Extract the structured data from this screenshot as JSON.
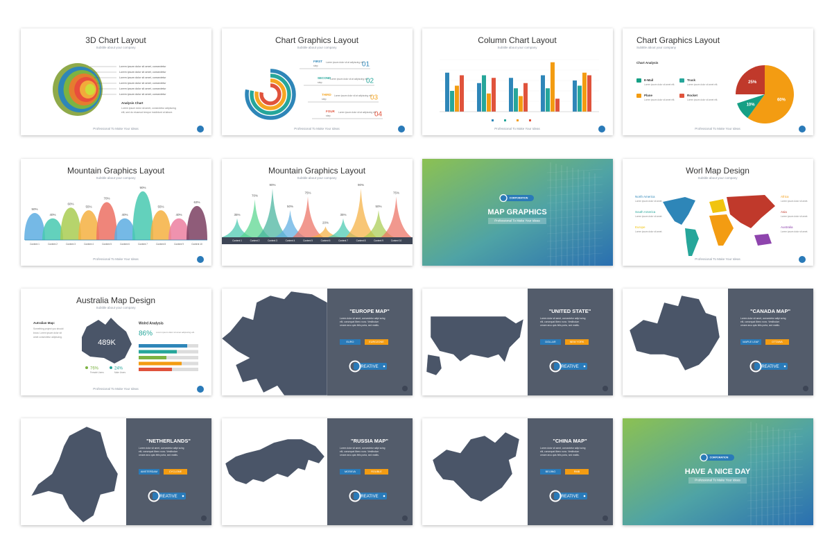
{
  "slides": [
    {
      "type": "chart3d",
      "title": "3D Chart Layout",
      "subtitle": "Subtitle about your company",
      "notes": [
        "Lorem ipsum dolor sit amet, consectetur",
        "Lorem ipsum dolor sit amet, consectetur",
        "Lorem ipsum dolor sit amet, consectetur",
        "Lorem ipsum dolor sit amet, consectetur",
        "Lorem ipsum dolor sit amet, consectetur",
        "Lorem ipsum dolor sit amet, consectetur"
      ],
      "caption": "Analysis Chart",
      "body": [
        "Lorem ipsum dolor sit amet, consectetur adipiscing",
        "elit, sed do eiusmod tempor incididunt ut labore."
      ],
      "footer": "Professional To Make Your Ideas"
    },
    {
      "type": "steps",
      "title": "Chart Graphics Layout",
      "subtitle": "Subtitle about your company",
      "steps": [
        {
          "label": "FIRST",
          "sub": "step",
          "num": "01",
          "text": "Lorem ipsum dolor sit at adipiscing elit.",
          "color": "#2e86b8"
        },
        {
          "label": "SECOND",
          "sub": "step",
          "num": "02",
          "text": "Lorem ipsum dolor sit at adipiscing elit.",
          "color": "#26a69a"
        },
        {
          "label": "THIRD",
          "sub": "step",
          "num": "03",
          "text": "Lorem ipsum dolor sit at adipiscing elit.",
          "color": "#f5a623"
        },
        {
          "label": "FOUR",
          "sub": "step",
          "num": "04",
          "text": "Lorem ipsum dolor sit at adipiscing elit.",
          "color": "#e0533c"
        }
      ],
      "footer": "Professional To Make Your Ideas"
    },
    {
      "type": "columns",
      "title": "Column Chart Layout",
      "subtitle": "Subtitle about your company",
      "ylim": [
        0,
        100
      ],
      "series": [
        {
          "color": "#2e86b8",
          "values": [
            75,
            55,
            65,
            70,
            60
          ]
        },
        {
          "color": "#26a69a",
          "values": [
            40,
            70,
            45,
            45,
            50
          ]
        },
        {
          "color": "#f39c12",
          "values": [
            50,
            35,
            30,
            95,
            75
          ]
        },
        {
          "color": "#e0533c",
          "values": [
            70,
            65,
            55,
            25,
            70
          ]
        }
      ],
      "footer": "Professional To Make Your Ideas"
    },
    {
      "type": "pie",
      "title": "Chart Graphics Layout",
      "subtitle": "Subtitle about your company",
      "heading": "Chart Analysis",
      "items": [
        "E-Mail",
        "Truck",
        "Plane",
        "Rocket"
      ],
      "item_colors": [
        "#16a085",
        "#26a69a",
        "#f39c12",
        "#e0533c"
      ],
      "desc": "Lorem ipsum dolor sit amet elit.",
      "values": [
        25,
        60,
        10
      ],
      "value_labels": [
        "25%",
        "60%",
        "10%"
      ],
      "colors": [
        "#c0392b",
        "#f39c12",
        "#16a085"
      ],
      "footer": "Professional To Make Your Ideas"
    },
    {
      "type": "hills",
      "title": "Mountain Graphics Layout",
      "subtitle": "Subtitle about your company",
      "categories": [
        "Content 1",
        "Content 2",
        "Content 3",
        "Content 4",
        "Content 5",
        "Content 6",
        "Content 7",
        "Content 8",
        "Content 9",
        "Content 10"
      ],
      "values": [
        50,
        40,
        60,
        55,
        70,
        40,
        90,
        55,
        40,
        63
      ],
      "value_labels": [
        "50%",
        "40%",
        "60%",
        "55%",
        "70%",
        "40%",
        "90%",
        "55%",
        "40%",
        "63%"
      ],
      "colors": [
        "#5dade2",
        "#48c9b0",
        "#a9cc52",
        "#f5b041",
        "#ec7063",
        "#5dade2",
        "#48c9b0",
        "#f5b041",
        "#ec7fa0",
        "#7b3f61"
      ],
      "footer": "Professional To Make Your Ideas"
    },
    {
      "type": "peaks",
      "title": "Mountain Graphics Layout",
      "subtitle": "Subtitle about your company",
      "categories": [
        "Content 1",
        "Content 2",
        "Content 3",
        "Content 4",
        "Content 5",
        "Content 6",
        "Content 7",
        "Content 8",
        "Content 9",
        "Content 10"
      ],
      "values": [
        35,
        70,
        90,
        50,
        75,
        20,
        35,
        90,
        50,
        75
      ],
      "value_labels": [
        "35%",
        "70%",
        "90%",
        "50%",
        "75%",
        "20%",
        "35%",
        "90%",
        "50%",
        "75%"
      ],
      "colors": [
        "#48c9b0",
        "#58d68d",
        "#45b39d",
        "#5dade2",
        "#ec7063",
        "#f5b041",
        "#48c9b0",
        "#f5b041",
        "#a9cc52",
        "#ec7063"
      ]
    },
    {
      "type": "cover",
      "badge": "CORPORATION",
      "title": "MAP GRAPHICS",
      "subtitle": "Professional To Make Your Ideas"
    },
    {
      "type": "world",
      "title": "Worl Map Design",
      "subtitle": "Subtitle about your company",
      "regions": [
        {
          "name": "North America",
          "color": "#2e86b8"
        },
        {
          "name": "South America",
          "color": "#26a69a"
        },
        {
          "name": "Europe",
          "color": "#f1c40f"
        },
        {
          "name": "Africa",
          "color": "#f39c12"
        },
        {
          "name": "Asia",
          "color": "#c0392b"
        },
        {
          "name": "Australia",
          "color": "#8e44ad"
        }
      ],
      "desc": "Lorem ipsum dolor sit amet.",
      "footer": "Professional To Make Your Ideas"
    },
    {
      "type": "australia",
      "title": "Australia Map Design",
      "subtitle": "Subtitle about your company",
      "heading": "Autralian Map:",
      "body": [
        "Something project you should",
        "know. Lorem ipsum dolor sit",
        "amet consectetur adipiscing."
      ],
      "center": "489K",
      "analysis": "Wolrd Analysis",
      "share": "86%",
      "share_text": "Lorem ipsum dolor sit amet adipiscing elit.",
      "female": "76%",
      "female_label": "Female Users",
      "male": "24%",
      "male_label": "Male Users",
      "footer": "Professional To Make Your Ideas"
    },
    {
      "type": "map",
      "title": "\"EUROPE MAP\"",
      "body": [
        "Lorem dolor sit amet, consectetur adipi scing",
        "elit, consequat libero nunc. Vestibulum",
        "ornare arcu quis felis porta, sed mattis."
      ],
      "tags": [
        "EURO",
        "EUROZONE"
      ],
      "logo": "REATIVE"
    },
    {
      "type": "map",
      "title": "\"UNITED STATE\"",
      "body": [
        "Lorem dolor sit amet, consectetur adipi scing",
        "elit, consequat libero nunc. Vestibulum",
        "ornare arcu quis felis porta, sed mattis."
      ],
      "tags": [
        "DOLLAR",
        "NEW YORK"
      ],
      "logo": "REATIVE"
    },
    {
      "type": "map",
      "title": "\"CANADA MAP\"",
      "body": [
        "Lorem dolor sit amet, consectetur adipi scing",
        "elit, consequat libero nunc. Vestibulum",
        "ornare arcu quis felis porta, sed mattis."
      ],
      "tags": [
        "MAPLE LEAF",
        "OTTAWA"
      ],
      "logo": "REATIVE"
    },
    {
      "type": "map",
      "title": "\"NETHERLANDS\"",
      "body": [
        "Lorem dolor sit amet, consectetur adipi scing",
        "elit, consequat libero nunc. Vestibulum",
        "ornare arcu quis felis porta, sed mattis."
      ],
      "tags": [
        "AMSTERDAM",
        "CYCLONE"
      ],
      "logo": "REATIVE"
    },
    {
      "type": "map",
      "title": "\"RUSSIA MAP\"",
      "body": [
        "Lorem dolor sit amet, consectetur adipi scing",
        "elit, consequat libero nunc. Vestibulum",
        "ornare arcu quis felis porta, sed mattis."
      ],
      "tags": [
        "MOSKVA",
        "ROUBLE"
      ],
      "logo": "REATIVE"
    },
    {
      "type": "map",
      "title": "\"CHINA MAP\"",
      "body": [
        "Lorem dolor sit amet, consectetur adipi scing",
        "elit, consequat libero nunc. Vestibulum",
        "ornare arcu quis felis porta, sed mattis."
      ],
      "tags": [
        "BEIJING",
        "RMB"
      ],
      "logo": "REATIVE"
    },
    {
      "type": "cover",
      "badge": "CORPORATION",
      "title": "HAVE A NICE DAY",
      "subtitle": "Professional To Make Your Ideas"
    }
  ]
}
